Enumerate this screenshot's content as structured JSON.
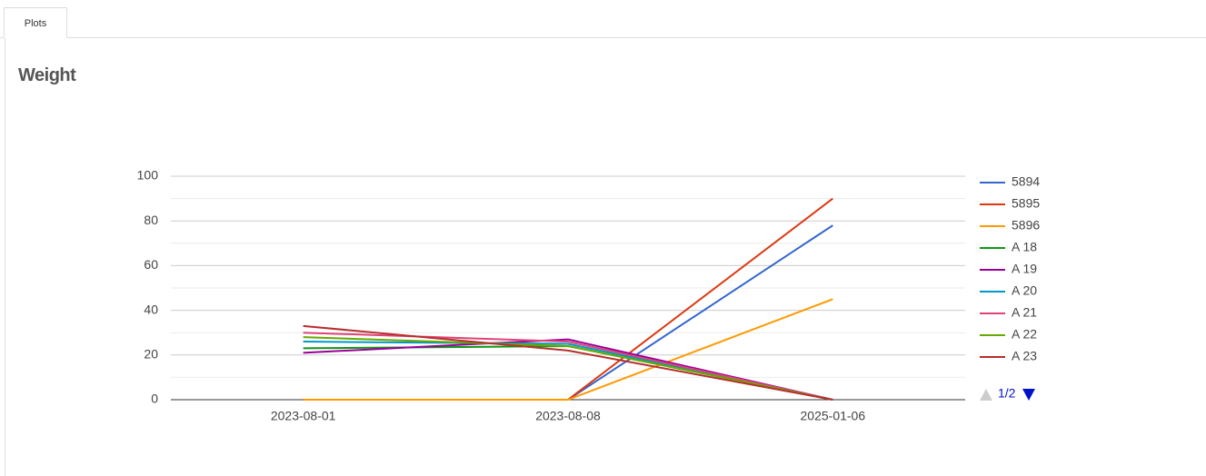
{
  "tab": "Plots",
  "chart_data": {
    "type": "line",
    "title": "Weight",
    "categories": [
      "2023-08-01",
      "2023-08-08",
      "2025-01-06"
    ],
    "series": [
      {
        "name": "5894",
        "color": "#3366cc",
        "values": [
          0,
          0,
          78
        ]
      },
      {
        "name": "5895",
        "color": "#dc3912",
        "values": [
          0,
          0,
          90
        ]
      },
      {
        "name": "5896",
        "color": "#ff9900",
        "values": [
          0,
          0,
          45
        ]
      },
      {
        "name": "A 18",
        "color": "#109618",
        "values": [
          23,
          24,
          0
        ]
      },
      {
        "name": "A 19",
        "color": "#990099",
        "values": [
          21,
          27,
          0
        ]
      },
      {
        "name": "A 20",
        "color": "#0099c6",
        "values": [
          26,
          25,
          0
        ]
      },
      {
        "name": "A 21",
        "color": "#dd4477",
        "values": [
          30,
          26,
          0
        ]
      },
      {
        "name": "A 22",
        "color": "#66aa00",
        "values": [
          28,
          24,
          0
        ]
      },
      {
        "name": "A 23",
        "color": "#b82e2e",
        "values": [
          33,
          22,
          0
        ]
      }
    ],
    "ylim": [
      0,
      100
    ],
    "yticks": [
      0,
      20,
      40,
      60,
      80,
      100
    ],
    "minor_yticks": [
      10,
      30,
      50,
      70,
      90
    ],
    "grid": true,
    "legend": "right",
    "legend_page": "1/2"
  }
}
